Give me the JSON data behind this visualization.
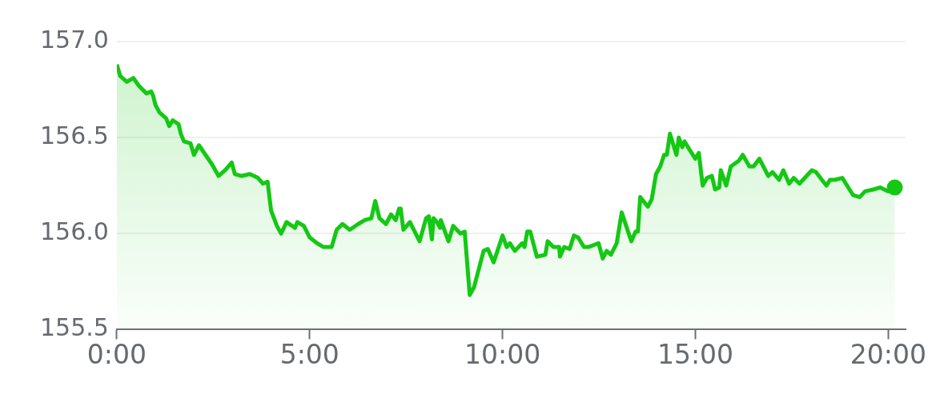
{
  "chart_data": {
    "type": "area",
    "x": [
      0,
      0.09,
      0.26,
      0.43,
      0.57,
      0.77,
      0.89,
      0.94,
      1.0,
      1.11,
      1.28,
      1.36,
      1.45,
      1.6,
      1.66,
      1.74,
      1.91,
      2.0,
      2.13,
      2.3,
      2.47,
      2.64,
      2.81,
      2.98,
      3.06,
      3.23,
      3.45,
      3.66,
      3.79,
      3.91,
      4.0,
      4.15,
      4.26,
      4.4,
      4.62,
      4.68,
      4.85,
      5.0,
      5.19,
      5.36,
      5.57,
      5.7,
      5.85,
      6.04,
      6.26,
      6.43,
      6.6,
      6.7,
      6.81,
      6.98,
      7.11,
      7.23,
      7.32,
      7.36,
      7.43,
      7.6,
      7.85,
      8.02,
      8.09,
      8.17,
      8.21,
      8.3,
      8.38,
      8.4,
      8.6,
      8.72,
      8.91,
      9.02,
      9.15,
      9.26,
      9.51,
      9.62,
      9.77,
      10.0,
      10.11,
      10.19,
      10.32,
      10.51,
      10.57,
      10.64,
      10.72,
      10.89,
      11.11,
      11.17,
      11.32,
      11.47,
      11.49,
      11.6,
      11.74,
      11.85,
      11.96,
      12.11,
      12.23,
      12.49,
      12.6,
      12.7,
      12.81,
      12.96,
      13.09,
      13.34,
      13.45,
      13.51,
      13.57,
      13.77,
      13.87,
      13.98,
      14.09,
      14.19,
      14.26,
      14.34,
      14.51,
      14.57,
      14.66,
      14.72,
      14.87,
      15.0,
      15.09,
      15.19,
      15.3,
      15.43,
      15.51,
      15.62,
      15.66,
      15.8,
      15.92,
      16.13,
      16.23,
      16.4,
      16.51,
      16.66,
      16.89,
      17.0,
      17.17,
      17.28,
      17.43,
      17.55,
      17.7,
      18.02,
      18.13,
      18.28,
      18.4,
      18.49,
      18.62,
      18.81,
      19.09,
      19.26,
      19.4,
      19.62,
      19.79,
      20.0,
      20.17
    ],
    "series": [
      {
        "color": "#14c814",
        "values": [
          156.88,
          156.82,
          156.79,
          156.81,
          156.77,
          156.73,
          156.74,
          156.72,
          156.67,
          156.63,
          156.6,
          156.56,
          156.59,
          156.57,
          156.52,
          156.48,
          156.47,
          156.41,
          156.46,
          156.41,
          156.36,
          156.3,
          156.33,
          156.37,
          156.31,
          156.3,
          156.31,
          156.29,
          156.26,
          156.27,
          156.12,
          156.04,
          156.0,
          156.06,
          156.03,
          156.06,
          156.04,
          155.98,
          155.95,
          155.93,
          155.93,
          156.02,
          156.05,
          156.02,
          156.05,
          156.07,
          156.08,
          156.17,
          156.08,
          156.05,
          156.1,
          156.07,
          156.13,
          156.13,
          156.02,
          156.06,
          155.96,
          156.08,
          156.09,
          155.97,
          156.08,
          156.06,
          156.03,
          156.07,
          155.96,
          156.04,
          156.0,
          156.01,
          155.68,
          155.72,
          155.91,
          155.92,
          155.85,
          155.99,
          155.93,
          155.95,
          155.91,
          155.95,
          155.93,
          156.01,
          156.01,
          155.88,
          155.89,
          155.96,
          155.93,
          155.93,
          155.88,
          155.93,
          155.92,
          155.99,
          155.98,
          155.93,
          155.93,
          155.95,
          155.87,
          155.91,
          155.89,
          155.95,
          156.11,
          155.96,
          156.01,
          156.01,
          156.19,
          156.14,
          156.18,
          156.31,
          156.35,
          156.41,
          156.41,
          156.52,
          156.41,
          156.5,
          156.45,
          156.48,
          156.43,
          156.39,
          156.42,
          156.25,
          156.29,
          156.3,
          156.23,
          156.24,
          156.33,
          156.25,
          156.35,
          156.38,
          156.41,
          156.35,
          156.35,
          156.39,
          156.3,
          156.32,
          156.28,
          156.33,
          156.26,
          156.29,
          156.26,
          156.33,
          156.32,
          156.28,
          156.25,
          156.28,
          156.28,
          156.29,
          156.2,
          156.19,
          156.22,
          156.23,
          156.24,
          156.22,
          156.24
        ]
      }
    ],
    "xlim": [
      0,
      20.45
    ],
    "xticks": [
      {
        "value": 0,
        "label": "0:00"
      },
      {
        "value": 5,
        "label": "5:00"
      },
      {
        "value": 10,
        "label": "10:00"
      },
      {
        "value": 15,
        "label": "15:00"
      },
      {
        "value": 20,
        "label": "20:00"
      }
    ],
    "ylim": [
      155.5,
      157.0
    ],
    "yticks": [
      {
        "value": 155.5,
        "label": "155.5"
      },
      {
        "value": 156,
        "label": "156.0"
      },
      {
        "value": 156.5,
        "label": "156.5"
      },
      {
        "value": 157,
        "label": "157.0"
      }
    ],
    "grid": "y"
  }
}
